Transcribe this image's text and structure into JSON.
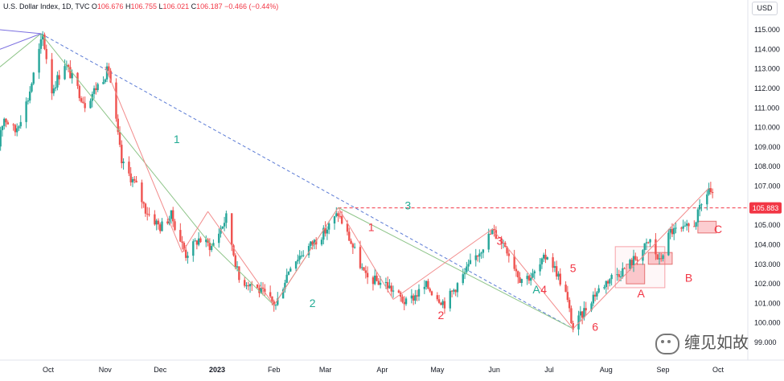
{
  "header": {
    "symbol": "U.S. Dollar Index, 1D, TVC",
    "o_key": "O",
    "o": "106.676",
    "h_key": "H",
    "h": "106.755",
    "l_key": "L",
    "l": "106.021",
    "c_key": "C",
    "c": "106.187",
    "change": "−0.466 (−0.44%)"
  },
  "currency": "USD",
  "watermark": "缠见如故",
  "colors": {
    "up": "#26a69a",
    "down": "#ef5350",
    "red_label": "#f23645",
    "green_label": "#22ab94",
    "last_price_bg": "#f23645"
  },
  "chart_data": {
    "type": "candlestick",
    "title": "U.S. Dollar Index, 1D, TVC",
    "ylim": [
      99.0,
      115.8
    ],
    "y_ticks": [
      "115.000",
      "114.000",
      "113.000",
      "112.000",
      "111.000",
      "110.000",
      "109.000",
      "108.000",
      "107.000",
      "105.000",
      "104.000",
      "103.000",
      "102.000",
      "101.000",
      "100.000",
      "99.000"
    ],
    "x_ticks": [
      "Oct",
      "Nov",
      "Dec",
      "2023",
      "Feb",
      "Mar",
      "Apr",
      "May",
      "Jun",
      "Jul",
      "Aug",
      "Sep",
      "Oct"
    ],
    "last_price": "105.883",
    "grid": false,
    "price_path": [
      [
        "2022-09-01",
        108.8
      ],
      [
        "2022-09-07",
        110.5
      ],
      [
        "2022-09-13",
        109.8
      ],
      [
        "2022-09-20",
        111.5
      ],
      [
        "2022-09-28",
        114.7
      ],
      [
        "2022-10-03",
        111.9
      ],
      [
        "2022-10-10",
        113.3
      ],
      [
        "2022-10-21",
        111.2
      ],
      [
        "2022-11-03",
        113.0
      ],
      [
        "2022-11-10",
        108.2
      ],
      [
        "2022-11-18",
        107.0
      ],
      [
        "2022-11-23",
        105.8
      ],
      [
        "2022-12-01",
        104.9
      ],
      [
        "2022-12-07",
        105.5
      ],
      [
        "2022-12-15",
        103.5
      ],
      [
        "2022-12-22",
        104.3
      ],
      [
        "2022-12-29",
        103.9
      ],
      [
        "2023-01-06",
        105.4
      ],
      [
        "2023-01-13",
        102.2
      ],
      [
        "2023-01-20",
        102.0
      ],
      [
        "2023-02-02",
        100.9
      ],
      [
        "2023-02-10",
        103.0
      ],
      [
        "2023-02-20",
        103.9
      ],
      [
        "2023-03-01",
        104.7
      ],
      [
        "2023-03-08",
        105.6
      ],
      [
        "2023-03-15",
        104.1
      ],
      [
        "2023-03-23",
        102.3
      ],
      [
        "2023-04-03",
        102.0
      ],
      [
        "2023-04-14",
        101.0
      ],
      [
        "2023-04-25",
        101.9
      ],
      [
        "2023-05-05",
        101.0
      ],
      [
        "2023-05-15",
        102.4
      ],
      [
        "2023-05-31",
        104.7
      ],
      [
        "2023-06-07",
        104.0
      ],
      [
        "2023-06-15",
        102.3
      ],
      [
        "2023-06-22",
        102.4
      ],
      [
        "2023-06-30",
        103.5
      ],
      [
        "2023-07-05",
        102.6
      ],
      [
        "2023-07-10",
        101.5
      ],
      [
        "2023-07-14",
        99.7
      ],
      [
        "2023-07-25",
        101.4
      ],
      [
        "2023-08-03",
        102.3
      ],
      [
        "2023-08-10",
        102.7
      ],
      [
        "2023-08-18",
        103.4
      ],
      [
        "2023-08-25",
        104.2
      ],
      [
        "2023-08-30",
        103.1
      ],
      [
        "2023-09-05",
        104.7
      ],
      [
        "2023-09-12",
        104.7
      ],
      [
        "2023-09-18",
        105.1
      ],
      [
        "2023-09-26",
        106.9
      ],
      [
        "2023-09-29",
        106.2
      ]
    ],
    "annotations": [
      {
        "text": "1",
        "color": "green",
        "date": "2022-12-10",
        "price": 109.2
      },
      {
        "text": "2",
        "color": "green",
        "date": "2023-02-22",
        "price": 100.8
      },
      {
        "text": "3",
        "color": "green",
        "date": "2023-04-15",
        "price": 105.8
      },
      {
        "text": "1",
        "color": "red",
        "date": "2023-03-26",
        "price": 104.7
      },
      {
        "text": "2",
        "color": "red",
        "date": "2023-05-03",
        "price": 100.2
      },
      {
        "text": "3",
        "color": "red",
        "date": "2023-06-04",
        "price": 104.0
      },
      {
        "text": "4",
        "color": "red",
        "date": "2023-06-28",
        "price": 101.5
      },
      {
        "text": "5",
        "color": "red",
        "date": "2023-07-14",
        "price": 102.6
      },
      {
        "text": "6",
        "color": "red",
        "date": "2023-07-26",
        "price": 99.6
      },
      {
        "text": "A",
        "color": "green",
        "date": "2023-06-24",
        "price": 101.5
      },
      {
        "text": "A",
        "color": "red",
        "date": "2023-08-20",
        "price": 101.3
      },
      {
        "text": "B",
        "color": "red",
        "date": "2023-09-15",
        "price": 102.1
      },
      {
        "text": "C",
        "color": "red",
        "date": "2023-10-01",
        "price": 104.6
      }
    ],
    "horizontal_line_price": 105.883,
    "dashed_trend": [
      [
        "2022-09-27",
        114.8
      ],
      [
        "2023-07-14",
        99.7
      ]
    ],
    "green_strokes": [
      [
        "2022-09-27",
        114.8
      ],
      [
        "2022-12-26",
        104.3
      ],
      [
        "2023-02-01",
        100.9
      ],
      [
        "2023-03-08",
        105.9
      ],
      [
        "2023-07-14",
        99.7
      ]
    ],
    "red_strokes": [
      [
        "2022-11-01",
        113.1
      ],
      [
        "2022-12-13",
        103.6
      ],
      [
        "2022-12-27",
        105.7
      ],
      [
        "2023-02-01",
        100.9
      ],
      [
        "2023-03-08",
        105.9
      ],
      [
        "2023-04-07",
        101.2
      ],
      [
        "2023-05-31",
        104.8
      ],
      [
        "2023-07-14",
        99.7
      ],
      [
        "2023-09-26",
        106.9
      ]
    ],
    "zones": [
      {
        "from": "2023-08-06",
        "to": "2023-09-02",
        "low": 101.8,
        "high": 103.9,
        "style": "outline"
      },
      {
        "from": "2023-08-12",
        "to": "2023-08-22",
        "low": 102.0,
        "high": 103.0,
        "style": "fill"
      },
      {
        "from": "2023-08-24",
        "to": "2023-09-06",
        "low": 103.0,
        "high": 103.6,
        "style": "fill"
      },
      {
        "from": "2023-09-20",
        "to": "2023-09-30",
        "low": 104.6,
        "high": 105.2,
        "style": "fill"
      }
    ]
  }
}
